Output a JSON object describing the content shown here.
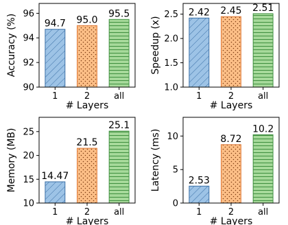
{
  "chart_data": [
    {
      "type": "bar",
      "categories": [
        "1",
        "2",
        "all"
      ],
      "values": [
        94.7,
        95.0,
        95.5
      ],
      "value_labels": [
        "94.7",
        "95.0",
        "95.5"
      ],
      "xlabel": "# Layers",
      "ylabel": "Accuracy (%)",
      "ylim": [
        90,
        96.8
      ],
      "yticks": [
        90,
        92,
        94,
        96
      ],
      "ytick_labels": [
        "90",
        "92",
        "94",
        "96"
      ]
    },
    {
      "type": "bar",
      "categories": [
        "1",
        "2",
        "all"
      ],
      "values": [
        2.42,
        2.45,
        2.51
      ],
      "value_labels": [
        "2.42",
        "2.45",
        "2.51"
      ],
      "xlabel": "# Layers",
      "ylabel": "Speedup (x)",
      "ylim": [
        1.0,
        2.72
      ],
      "yticks": [
        1.0,
        1.5,
        2.0,
        2.5
      ],
      "ytick_labels": [
        "1.0",
        "1.5",
        "2.0",
        "2.5"
      ]
    },
    {
      "type": "bar",
      "categories": [
        "1",
        "2",
        "all"
      ],
      "values": [
        14.47,
        21.5,
        25.1
      ],
      "value_labels": [
        "14.47",
        "21.5",
        "25.1"
      ],
      "xlabel": "# Layers",
      "ylabel": "Memory (MB)",
      "ylim": [
        10,
        28
      ],
      "yticks": [
        10,
        15,
        20,
        25
      ],
      "ytick_labels": [
        "10",
        "15",
        "20",
        "25"
      ]
    },
    {
      "type": "bar",
      "categories": [
        "1",
        "2",
        "all"
      ],
      "values": [
        2.53,
        8.72,
        10.2
      ],
      "value_labels": [
        "2.53",
        "8.72",
        "10.2"
      ],
      "xlabel": "# Layers",
      "ylabel": "Latency (ms)",
      "ylim": [
        0,
        12.8
      ],
      "yticks": [
        0,
        5,
        10
      ],
      "ytick_labels": [
        "0",
        "5",
        "10"
      ]
    }
  ],
  "bar_styles": [
    {
      "fill": "#9dc3e6",
      "edge": "#3a6fa6",
      "hatch": "diagonal"
    },
    {
      "fill": "#fdbf87",
      "edge": "#e07b39",
      "hatch": "dots"
    },
    {
      "fill": "#a6d99a",
      "edge": "#3f8f3f",
      "hatch": "horizontal"
    }
  ]
}
